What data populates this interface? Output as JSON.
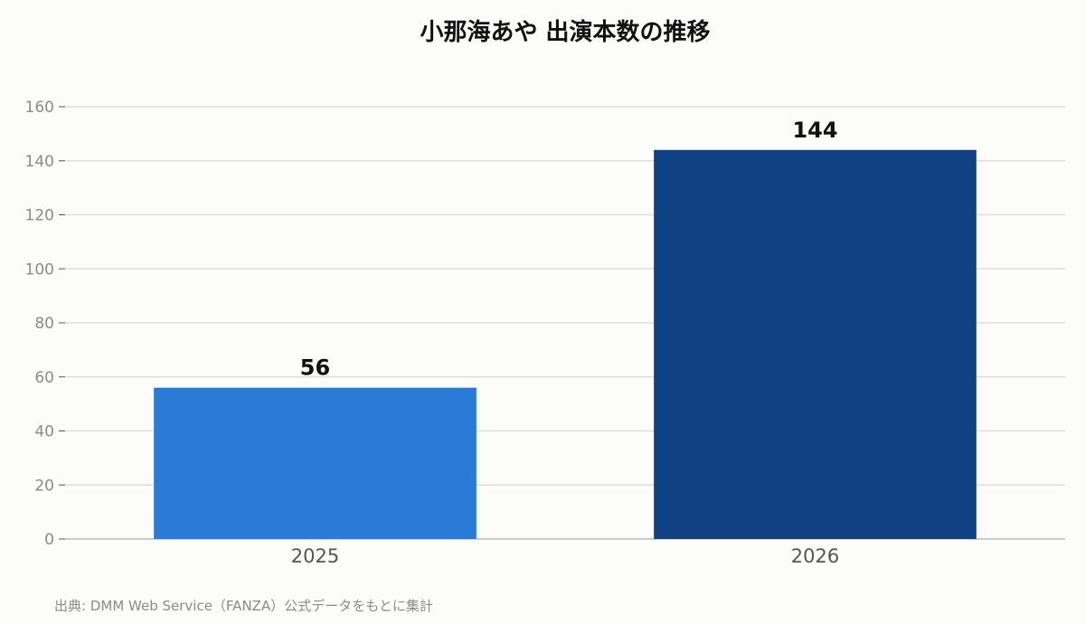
{
  "chart_data": {
    "type": "bar",
    "title": "小那海あや 出演本数の推移",
    "categories": [
      "2025",
      "2026"
    ],
    "values": [
      56,
      144
    ],
    "colors": [
      "#2a7ad8",
      "#104182"
    ],
    "ylim": [
      0,
      160
    ],
    "yticks": [
      0,
      20,
      40,
      60,
      80,
      100,
      120,
      140,
      160
    ],
    "grid": true,
    "legend": "none"
  },
  "source": "出典: DMM Web Service（FANZA）公式データをもとに集計"
}
